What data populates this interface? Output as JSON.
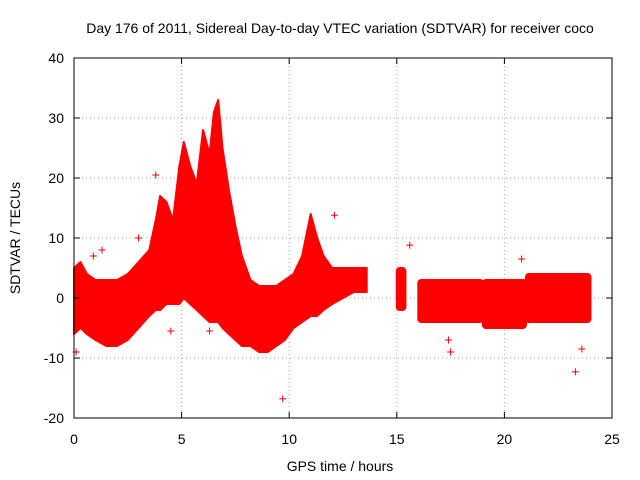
{
  "chart_data": {
    "type": "scatter",
    "title": "Day 176 of 2011, Sidereal Day-to-day VTEC variation (SDTVAR) for receiver coco",
    "xlabel": "GPS time / hours",
    "ylabel": "SDTVAR / TECUs",
    "xlim": [
      0,
      25
    ],
    "ylim": [
      -20,
      40
    ],
    "xticks": [
      "0",
      "5",
      "10",
      "15",
      "20",
      "25"
    ],
    "yticks": [
      "-20",
      "-10",
      "0",
      "10",
      "20",
      "30",
      "40"
    ],
    "grid": true,
    "marker": "+",
    "series_color": "#ff0000",
    "envelope": {
      "x": [
        0,
        0.3,
        0.6,
        1.0,
        1.5,
        2.0,
        2.5,
        3.0,
        3.5,
        3.8,
        4.0,
        4.3,
        4.6,
        4.9,
        5.1,
        5.4,
        5.7,
        6.0,
        6.3,
        6.5,
        6.7,
        6.9,
        7.2,
        7.5,
        7.8,
        8.2,
        8.6,
        9.0,
        9.4,
        9.8,
        10.2,
        10.6,
        11.0,
        11.3,
        11.6,
        12.0,
        12.5,
        13.0,
        13.6
      ],
      "upper": [
        5,
        6,
        4,
        3,
        3,
        3,
        4,
        6,
        8,
        13,
        17,
        16,
        13,
        22,
        26,
        22,
        19,
        28,
        24,
        31,
        33,
        25,
        18,
        12,
        7,
        3,
        2,
        2,
        2,
        3,
        4,
        7,
        14,
        10,
        7,
        5,
        5,
        5,
        5
      ],
      "lower": [
        -6,
        -5,
        -6,
        -7,
        -8,
        -8,
        -7,
        -5,
        -3,
        -2,
        -2,
        -1,
        -1,
        -1,
        0,
        -1,
        -2,
        -3,
        -4,
        -4,
        -4,
        -5,
        -6,
        -7,
        -8,
        -8,
        -9,
        -9,
        -8,
        -7,
        -5,
        -4,
        -3,
        -3,
        -2,
        -1,
        0,
        1,
        1
      ]
    },
    "segments": [
      {
        "x0": 15.0,
        "x1": 15.4,
        "upper": 5,
        "lower": -2
      },
      {
        "x0": 16.0,
        "x1": 19.0,
        "upper": 3,
        "lower": -4
      },
      {
        "x0": 19.0,
        "x1": 21.0,
        "upper": 3,
        "lower": -5
      },
      {
        "x0": 21.0,
        "x1": 24.0,
        "upper": 4,
        "lower": -4
      }
    ],
    "outliers": [
      {
        "x": 0.1,
        "y": -9
      },
      {
        "x": 0.9,
        "y": 7
      },
      {
        "x": 1.3,
        "y": 8
      },
      {
        "x": 3.0,
        "y": 10
      },
      {
        "x": 3.8,
        "y": 20.5
      },
      {
        "x": 4.5,
        "y": -5.5
      },
      {
        "x": 6.3,
        "y": -5.5
      },
      {
        "x": 9.7,
        "y": -16.8
      },
      {
        "x": 12.1,
        "y": 13.8
      },
      {
        "x": 15.6,
        "y": 8.8
      },
      {
        "x": 17.5,
        "y": -9
      },
      {
        "x": 17.4,
        "y": -7
      },
      {
        "x": 20.8,
        "y": 6.5
      },
      {
        "x": 23.3,
        "y": -12.3
      },
      {
        "x": 23.6,
        "y": -8.5
      }
    ]
  }
}
